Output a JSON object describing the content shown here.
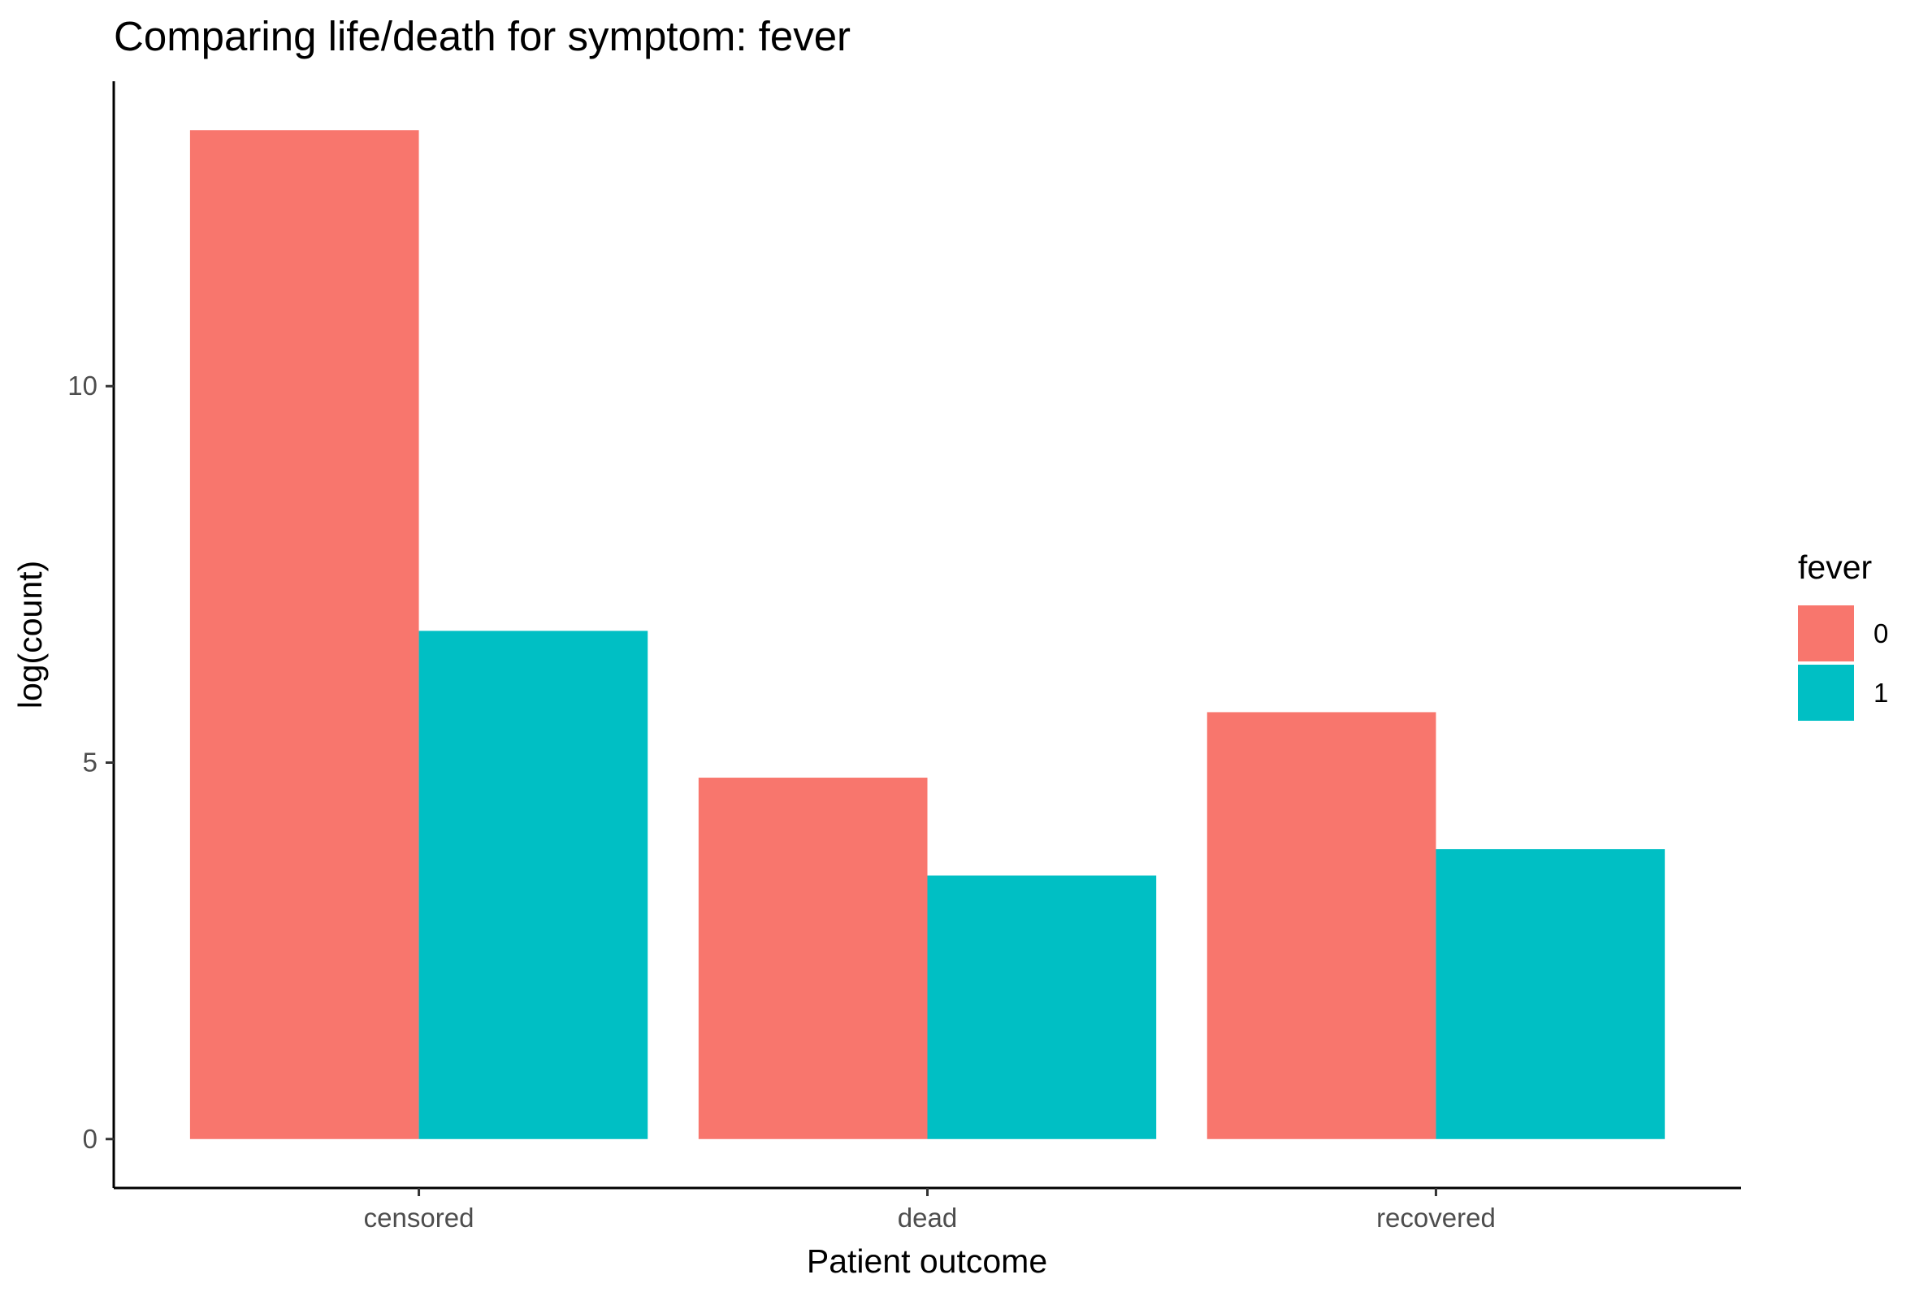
{
  "chart_data": {
    "type": "bar",
    "title": "Comparing life/death for symptom: fever",
    "xlabel": "Patient outcome",
    "ylabel": "log(count)",
    "categories": [
      "censored",
      "dead",
      "recovered"
    ],
    "series": [
      {
        "name": "0",
        "color": "#F8766D",
        "values": [
          13.4,
          4.8,
          5.67
        ]
      },
      {
        "name": "1",
        "color": "#00BFC4",
        "values": [
          6.75,
          3.5,
          3.85
        ]
      }
    ],
    "ylim": [
      -0.65,
      14.05
    ],
    "yticks": [
      0,
      5,
      10
    ],
    "grid": false,
    "legend": {
      "title": "fever",
      "position": "right"
    }
  }
}
